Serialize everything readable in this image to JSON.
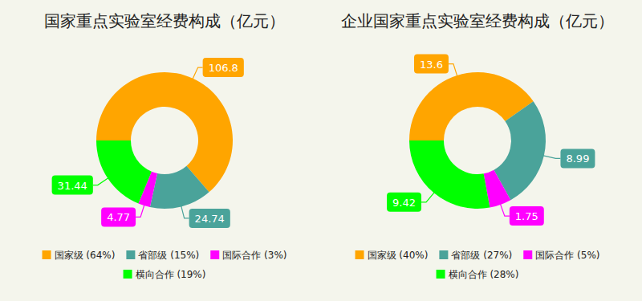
{
  "chart_data": [
    {
      "type": "donut",
      "title": "国家重点实验室经费构成（亿元）",
      "categories": [
        "国家级 (64%)",
        "省部级 (15%)",
        "国际合作 (3%)",
        "横向合作 (19%)"
      ],
      "values": [
        106.8,
        24.74,
        4.77,
        31.44
      ],
      "colors": [
        "#ffa500",
        "#4aa39a",
        "#ff00ff",
        "#00ff00"
      ],
      "data_labels": true,
      "legend": "bottom"
    },
    {
      "type": "donut",
      "title": "企业国家重点实验室经费构成（亿元）",
      "categories": [
        "国家级 (40%)",
        "省部级 (27%)",
        "国际合作 (5%)",
        "横向合作 (28%)"
      ],
      "values": [
        13.6,
        8.99,
        1.75,
        9.42
      ],
      "colors": [
        "#ffa500",
        "#4aa39a",
        "#ff00ff",
        "#00ff00"
      ],
      "data_labels": true,
      "legend": "bottom"
    }
  ]
}
